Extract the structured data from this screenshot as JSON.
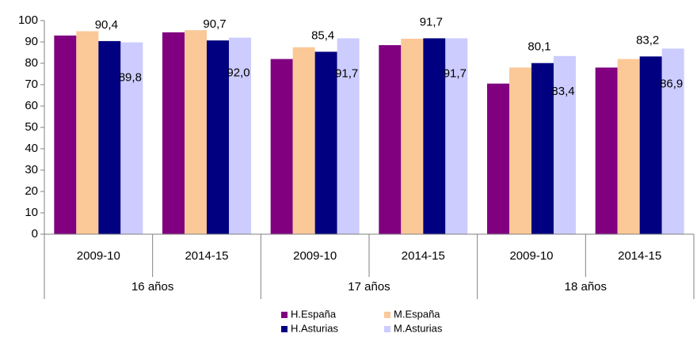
{
  "chart_data": {
    "type": "bar",
    "categories": [
      "2009-10",
      "2014-15",
      "2009-10",
      "2014-15",
      "2009-10",
      "2014-15"
    ],
    "category_groups": [
      "16 años",
      "17 años",
      "18 años"
    ],
    "series": [
      {
        "name": "H.España",
        "color": "#800080",
        "values": [
          93,
          94.5,
          82,
          88.5,
          70.5,
          78
        ]
      },
      {
        "name": "M.España",
        "color": "#fbc897",
        "values": [
          95,
          95.5,
          87.5,
          91.5,
          78,
          82
        ]
      },
      {
        "name": "H.Asturias",
        "color": "#000080",
        "values": [
          90.4,
          90.7,
          85.4,
          91.7,
          80.1,
          83.2
        ],
        "value_labels": [
          "90,4",
          "90,7",
          "85,4",
          "91,7",
          "80,1",
          "83,2"
        ]
      },
      {
        "name": "M.Asturias",
        "color": "#ccccff",
        "values": [
          89.8,
          92.0,
          91.7,
          91.7,
          83.4,
          86.9
        ],
        "value_labels": [
          "89,8",
          "92,0",
          "91,7",
          "91,7",
          "83,4",
          "86,9"
        ]
      }
    ],
    "ylim": [
      0,
      100
    ],
    "yticks": [
      0,
      10,
      20,
      30,
      40,
      50,
      60,
      70,
      80,
      90,
      100
    ],
    "legend": "bottom"
  }
}
